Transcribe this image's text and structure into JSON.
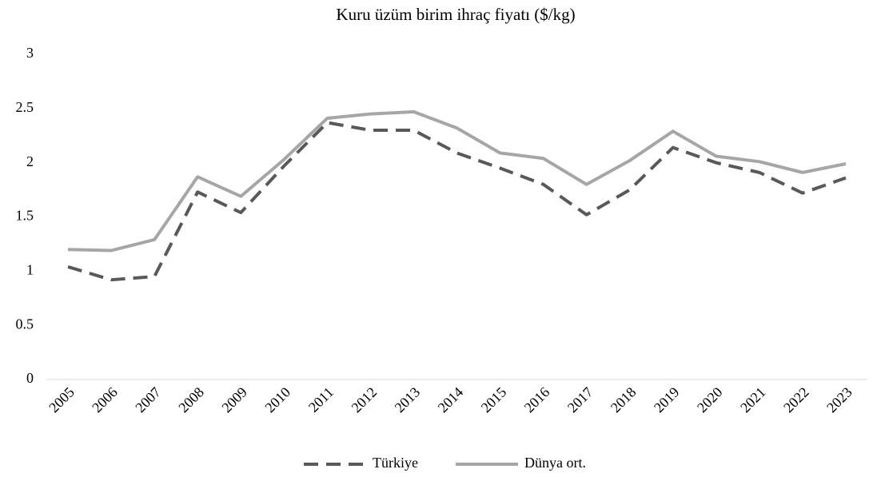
{
  "chart_data": {
    "type": "line",
    "title": "Kuru üzüm birim ihraç fiyatı ($/kg)",
    "categories": [
      "2005",
      "2006",
      "2007",
      "2008",
      "2009",
      "2010",
      "2011",
      "2012",
      "2013",
      "2014",
      "2015",
      "2016",
      "2017",
      "2018",
      "2019",
      "2020",
      "2021",
      "2022",
      "2023"
    ],
    "series": [
      {
        "name": "Türkiye",
        "color": "#595959",
        "dash": true,
        "values": [
          1.04,
          0.92,
          0.95,
          1.73,
          1.54,
          1.97,
          2.37,
          2.3,
          2.3,
          2.09,
          1.95,
          1.8,
          1.52,
          1.75,
          2.14,
          2.0,
          1.91,
          1.72,
          1.86
        ]
      },
      {
        "name": "Dünya ort.",
        "color": "#a6a6a6",
        "dash": false,
        "values": [
          1.2,
          1.19,
          1.29,
          1.87,
          1.69,
          2.03,
          2.41,
          2.45,
          2.47,
          2.32,
          2.09,
          2.04,
          1.8,
          2.02,
          2.29,
          2.06,
          2.01,
          1.91,
          1.99
        ]
      }
    ],
    "ylim": [
      0,
      3
    ],
    "yticks": [
      0,
      0.5,
      1,
      1.5,
      2,
      2.5,
      3
    ],
    "grid": false,
    "legend": "bottom"
  }
}
